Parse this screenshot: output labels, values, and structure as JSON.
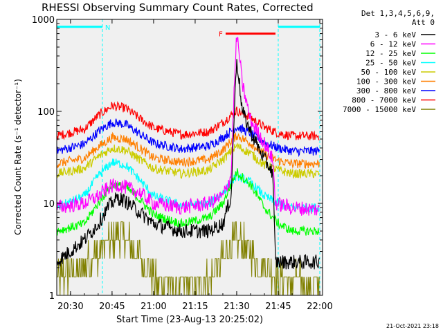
{
  "chart_data": {
    "type": "line",
    "title": "RHESSI Observing Summary Count Rates, Corrected",
    "xlabel": "Start Time (23-Aug-13 20:25:02)",
    "ylabel": "Corrected Count Rate (s⁻¹ detector⁻¹)",
    "y_scale": "log",
    "ylim": [
      1,
      1000
    ],
    "xlim": [
      "20:25:02",
      "22:01:00"
    ],
    "x_ticks": [
      "20:30",
      "20:45",
      "21:00",
      "21:15",
      "21:30",
      "21:45",
      "22:00"
    ],
    "y_ticks": [
      "1",
      "10",
      "100",
      "1000"
    ],
    "legend_header": [
      "Det 1,3,4,5,6,9,",
      "Att 0"
    ],
    "legend_placement": "right",
    "footer_date": "21-Oct-2021 23:18",
    "annotations": [
      {
        "label": "N",
        "color": "#00ffff",
        "x_start": "20:25:02",
        "x_end": "20:41:30",
        "level": 830
      },
      {
        "label": "",
        "color": "#00ffff",
        "x_start": "21:45:00",
        "x_end": "22:00:00",
        "level": 830
      },
      {
        "label": "F",
        "color": "#ff0000",
        "x_start": "21:26:00",
        "x_end": "21:44:00",
        "level": 700
      }
    ],
    "vertical_markers": [
      "20:25:02",
      "20:41:30",
      "21:45:00",
      "22:00:00"
    ],
    "series": [
      {
        "name": "3 - 6 keV",
        "color": "#000000",
        "x": [
          "20:25:02",
          "20:35",
          "20:40",
          "20:44",
          "20:47",
          "20:50",
          "20:55",
          "21:00",
          "21:10",
          "21:20",
          "21:25",
          "21:28",
          "21:29",
          "21:30",
          "21:31",
          "21:32",
          "21:35",
          "21:40",
          "21:43",
          "21:44",
          "21:50",
          "22:00"
        ],
        "values": [
          2.3,
          4,
          6,
          9.5,
          11.5,
          10.5,
          8,
          6,
          5,
          5,
          6,
          12,
          80,
          380,
          200,
          100,
          60,
          30,
          22,
          2.3,
          2.3,
          2.3
        ]
      },
      {
        "name": "6 - 12 keV",
        "color": "#ff00ff",
        "x": [
          "20:25:02",
          "20:35",
          "20:40",
          "20:44",
          "20:47",
          "20:50",
          "20:55",
          "21:00",
          "21:10",
          "21:20",
          "21:25",
          "21:28",
          "21:29",
          "21:30",
          "21:31",
          "21:32",
          "21:35",
          "21:40",
          "21:43",
          "21:44",
          "21:50",
          "22:00"
        ],
        "values": [
          9,
          10,
          12,
          15,
          16,
          15,
          13,
          10,
          9,
          10,
          12,
          20,
          150,
          680,
          400,
          200,
          80,
          45,
          30,
          10,
          9,
          8.5
        ]
      },
      {
        "name": "12 - 25 keV",
        "color": "#00ff00",
        "x": [
          "20:25:02",
          "20:35",
          "20:40",
          "20:45",
          "20:50",
          "20:55",
          "21:00",
          "21:10",
          "21:20",
          "21:25",
          "21:30",
          "21:35",
          "21:40",
          "21:45",
          "21:50",
          "22:00"
        ],
        "values": [
          5,
          6,
          10,
          16,
          15,
          11,
          7.5,
          6,
          7,
          10,
          22,
          16,
          9,
          6,
          5,
          5
        ]
      },
      {
        "name": "25 - 50 keV",
        "color": "#00ffff",
        "x": [
          "20:25:02",
          "20:35",
          "20:40",
          "20:45",
          "20:50",
          "20:55",
          "21:00",
          "21:10",
          "21:20",
          "21:25",
          "21:30",
          "21:35",
          "21:40",
          "21:45",
          "21:50",
          "22:00"
        ],
        "values": [
          9,
          12,
          20,
          28,
          26,
          18,
          12,
          9.5,
          10,
          13,
          20,
          17,
          12,
          10,
          9,
          9
        ]
      },
      {
        "name": "50 - 100 keV",
        "color": "#cccc00",
        "x": [
          "20:25:02",
          "20:35",
          "20:40",
          "20:45",
          "20:50",
          "20:55",
          "21:00",
          "21:10",
          "21:20",
          "21:25",
          "21:30",
          "21:35",
          "21:40",
          "21:45",
          "21:50",
          "22:00"
        ],
        "values": [
          21,
          24,
          32,
          40,
          38,
          30,
          24,
          21,
          23,
          30,
          42,
          35,
          26,
          23,
          21,
          21
        ]
      },
      {
        "name": "100 - 300 keV",
        "color": "#ff7f00",
        "x": [
          "20:25:02",
          "20:35",
          "20:40",
          "20:45",
          "20:50",
          "20:55",
          "21:00",
          "21:10",
          "21:20",
          "21:25",
          "21:30",
          "21:35",
          "21:40",
          "21:45",
          "21:50",
          "22:00"
        ],
        "values": [
          27,
          31,
          41,
          52,
          50,
          40,
          31,
          28,
          30,
          38,
          55,
          45,
          34,
          29,
          27,
          27
        ]
      },
      {
        "name": "300 - 800 keV",
        "color": "#0000ff",
        "x": [
          "20:25:02",
          "20:35",
          "20:40",
          "20:45",
          "20:50",
          "20:55",
          "21:00",
          "21:10",
          "21:20",
          "21:25",
          "21:30",
          "21:35",
          "21:40",
          "21:45",
          "21:50",
          "22:00"
        ],
        "values": [
          37,
          44,
          60,
          76,
          72,
          57,
          45,
          39,
          42,
          52,
          68,
          58,
          46,
          40,
          37,
          37
        ]
      },
      {
        "name": "800 - 7000 keV",
        "color": "#ff0000",
        "x": [
          "20:25:02",
          "20:35",
          "20:40",
          "20:45",
          "20:50",
          "20:55",
          "21:00",
          "21:10",
          "21:20",
          "21:25",
          "21:30",
          "21:35",
          "21:40",
          "21:45",
          "21:50",
          "22:00"
        ],
        "values": [
          54,
          64,
          90,
          115,
          108,
          84,
          66,
          56,
          60,
          76,
          102,
          86,
          67,
          58,
          54,
          54
        ]
      },
      {
        "name": "7000 - 15000 keV",
        "color": "#808000",
        "x": [
          "20:25:02",
          "20:35",
          "20:40",
          "20:44",
          "20:47",
          "20:50",
          "20:55",
          "21:00",
          "21:10",
          "21:20",
          "21:25",
          "21:30",
          "21:35",
          "21:40",
          "21:45",
          "21:50",
          "22:00"
        ],
        "values": [
          1.5,
          2,
          3,
          4,
          4.5,
          4,
          2.5,
          1.5,
          1.3,
          1.5,
          2.5,
          4,
          3,
          2,
          1.5,
          1.4,
          1.3
        ]
      }
    ]
  }
}
